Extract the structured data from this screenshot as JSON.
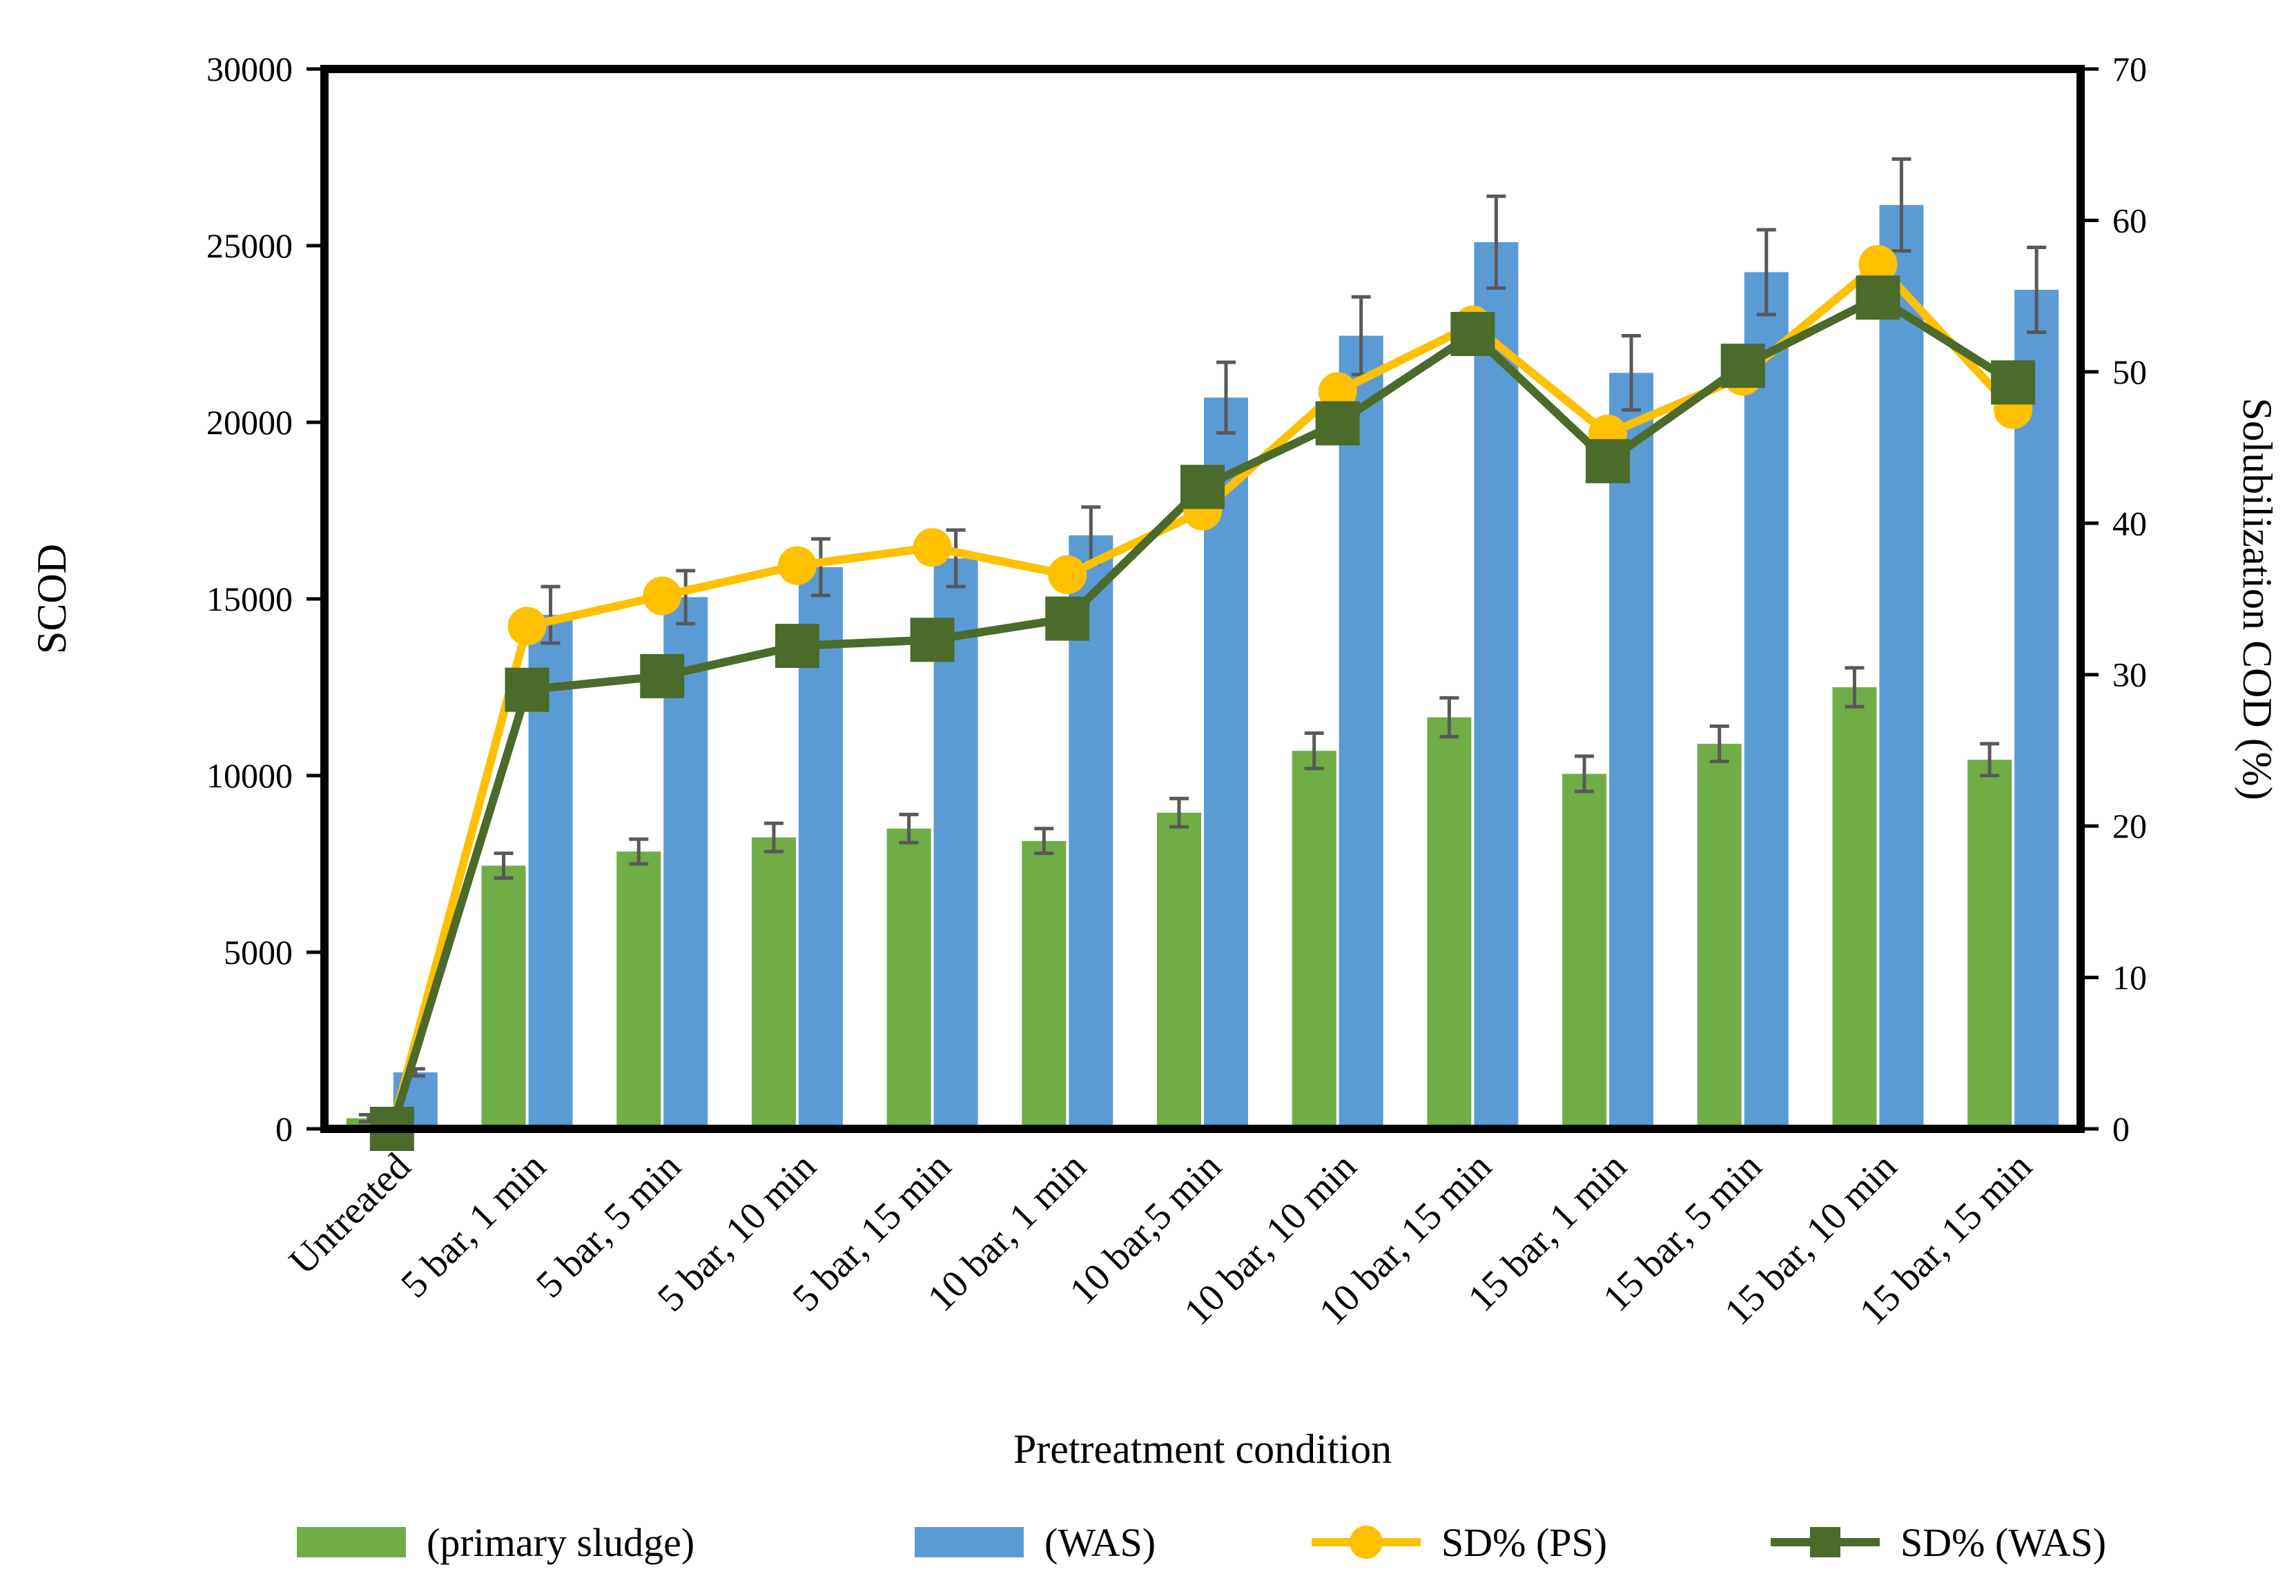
{
  "chart_data": {
    "type": "bar",
    "categories": [
      "Untreated",
      "5 bar, 1 min",
      "5 bar, 5 min",
      "5 bar, 10 min",
      "5 bar, 15 min",
      "10 bar, 1 min",
      "10 bar,5 min",
      "10 bar, 10 min",
      "10 bar, 15 min",
      "15 bar, 1 min",
      "15 bar, 5 min",
      "15 bar, 10 min",
      "15 bar, 15 min"
    ],
    "xlabel": "Pretreatment condition",
    "ylabel": "SCOD",
    "y2label": "Solubilization COD (%)",
    "ylim": [
      0,
      30000
    ],
    "y2lim": [
      0,
      70
    ],
    "yticks": [
      "0",
      "5000",
      "10000",
      "15000",
      "20000",
      "25000",
      "30000"
    ],
    "y2ticks": [
      "0",
      "10",
      "20",
      "30",
      "40",
      "50",
      "60",
      "70"
    ],
    "series": [
      {
        "name": "(primary sludge)",
        "kind": "bar",
        "axis": "left",
        "color": "#70ad47",
        "values": [
          300,
          7450,
          7850,
          8250,
          8500,
          8150,
          8950,
          10700,
          11650,
          10050,
          10900,
          12500,
          10450
        ],
        "errors": [
          100,
          350,
          350,
          400,
          400,
          350,
          400,
          500,
          550,
          500,
          500,
          550,
          450
        ]
      },
      {
        "name": "(WAS)",
        "kind": "bar",
        "axis": "left",
        "color": "#5b9bd5",
        "values": [
          1600,
          14550,
          15050,
          15900,
          16150,
          16800,
          20700,
          22450,
          25100,
          21400,
          24250,
          26150,
          23750
        ],
        "errors": [
          100,
          800,
          750,
          800,
          800,
          800,
          1000,
          1100,
          1300,
          1050,
          1200,
          1300,
          1200
        ]
      },
      {
        "name": "SD% (PS)",
        "kind": "line",
        "axis": "right",
        "color": "#ffc000",
        "marker": "circle",
        "values": [
          0,
          33.2,
          35.2,
          37.2,
          38.4,
          36.6,
          40.8,
          48.7,
          53.1,
          45.9,
          49.7,
          57.1,
          47.5
        ]
      },
      {
        "name": "SD% (WAS)",
        "kind": "line",
        "axis": "right",
        "color": "#4a6b2a",
        "marker": "square",
        "values": [
          0,
          29.0,
          29.9,
          31.9,
          32.3,
          33.7,
          42.4,
          46.6,
          52.5,
          44.1,
          50.4,
          54.9,
          49.3
        ]
      }
    ],
    "legend": "bottom"
  }
}
